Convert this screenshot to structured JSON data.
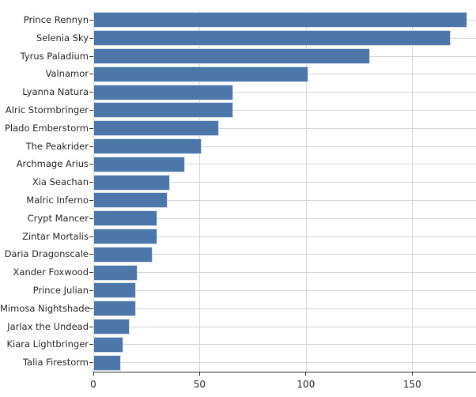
{
  "chart_data": {
    "type": "bar",
    "orientation": "horizontal",
    "title": "",
    "xlabel": "",
    "ylabel": "",
    "categories": [
      "Prince Rennyn",
      "Selenia Sky",
      "Tyrus Paladium",
      "Valnamor",
      "Lyanna Natura",
      "Alric Stormbringer",
      "Plado Emberstorm",
      "The Peakrider",
      "Archmage Arius",
      "Xia Seachan",
      "Malric Inferno",
      "Crypt Mancer",
      "Zintar Mortalis",
      "Daria Dragonscale",
      "Xander Foxwood",
      "Prince Julian",
      "Mimosa Nightshade",
      "Jarlax the Undead",
      "Kiara Lightbringer",
      "Talia Firestorm"
    ],
    "values": [
      176,
      168,
      130,
      101,
      66,
      66,
      59,
      51,
      43,
      36,
      35,
      30,
      30,
      28,
      21,
      20,
      20,
      17,
      14,
      13
    ],
    "x_ticks": [
      0,
      50,
      100,
      150
    ],
    "x_tick_labels": [
      "0",
      "50",
      "100",
      "150"
    ],
    "xlim": [
      0,
      180
    ],
    "grid": "both",
    "legend": "none",
    "colors": {
      "bar_fill": "#4d77a8",
      "bar_edge": "#d7e1ee",
      "gridline": "#d4d4d4",
      "axis_line": "#333333",
      "tick_text": "#262626"
    }
  }
}
